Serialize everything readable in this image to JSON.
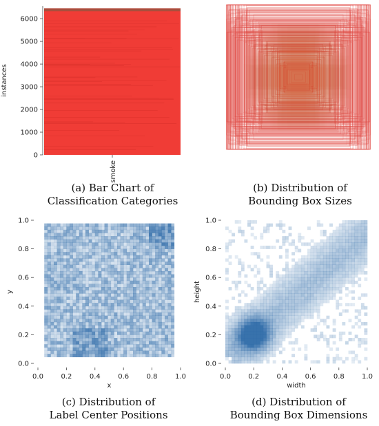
{
  "chart_data": [
    {
      "type": "bar",
      "categories": [
        "smoke"
      ],
      "values": [
        6450
      ],
      "ylabel": "instances",
      "yticks": [
        0,
        1000,
        2000,
        3000,
        4000,
        5000,
        6000
      ],
      "ylim": [
        0,
        6550
      ],
      "bar_color": "#f03c36",
      "caption": [
        "(a) Bar Chart of",
        "Classification Categories"
      ]
    },
    {
      "type": "scatter",
      "description_kind": "overlaid bounding boxes centered at origin",
      "box_color": "#e0453f",
      "caption": [
        "(b) Distribution of",
        "Bounding Box Sizes"
      ]
    },
    {
      "type": "heatmap",
      "xlabel": "x",
      "ylabel": "y",
      "xticks": [
        0.0,
        0.2,
        0.4,
        0.6,
        0.8,
        1.0
      ],
      "yticks": [
        0.0,
        0.2,
        0.4,
        0.6,
        0.8,
        1.0
      ],
      "xlim": [
        0.0,
        1.0
      ],
      "ylim": [
        0.0,
        1.0
      ],
      "x_data_range": [
        0.05,
        0.95
      ],
      "y_data_range": [
        0.05,
        0.97
      ],
      "cmap_color": "#2d6aa8",
      "caption": [
        "(c) Distribution of",
        "Label Center Positions"
      ]
    },
    {
      "type": "heatmap",
      "xlabel": "width",
      "ylabel": "height",
      "xticks": [
        0.0,
        0.2,
        0.4,
        0.6,
        0.8,
        1.0
      ],
      "yticks": [
        0.0,
        0.2,
        0.4,
        0.6,
        0.8,
        1.0
      ],
      "xlim": [
        0.0,
        1.0
      ],
      "ylim": [
        0.0,
        1.0
      ],
      "density_peak": [
        0.2,
        0.2
      ],
      "cmap_color": "#2d6aa8",
      "caption": [
        "(d) Distribution of",
        "Bounding Box Dimensions"
      ]
    }
  ]
}
